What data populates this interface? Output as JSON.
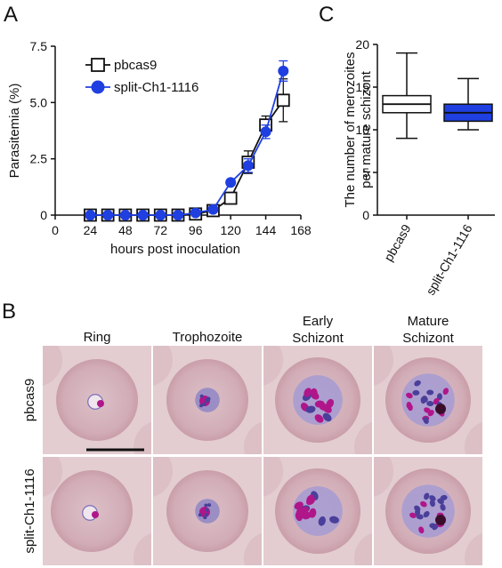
{
  "panels": {
    "a": "A",
    "b": "B",
    "c": "C"
  },
  "chart_data": [
    {
      "type": "line",
      "xlabel": "hours post inoculation",
      "ylabel": "Parasitemia (%)",
      "xlim": [
        0,
        168
      ],
      "ylim": [
        0,
        7.5
      ],
      "xticks": [
        0,
        24,
        48,
        72,
        96,
        120,
        144,
        168
      ],
      "yticks": [
        0,
        2.5,
        5.0,
        7.5
      ],
      "ytick_labels": [
        "0",
        "2.5",
        "5.0",
        "7.5"
      ],
      "legend_position": "top-left",
      "grid": false,
      "series": [
        {
          "name": "pbcas9",
          "marker": "open-square",
          "color": "#111111",
          "x": [
            24,
            36,
            48,
            60,
            72,
            84,
            96,
            108,
            120,
            132,
            144,
            156
          ],
          "y": [
            0,
            0,
            0,
            0,
            0,
            0,
            0.05,
            0.2,
            0.75,
            2.35,
            4.0,
            5.1
          ],
          "err": [
            0,
            0,
            0,
            0,
            0,
            0,
            0.05,
            0.08,
            0.15,
            0.5,
            0.4,
            0.95
          ]
        },
        {
          "name": "split-Ch1-1116",
          "marker": "filled-circle",
          "color": "#1f3fe0",
          "x": [
            24,
            36,
            48,
            60,
            72,
            84,
            96,
            108,
            120,
            132,
            144,
            156
          ],
          "y": [
            0,
            0,
            0,
            0,
            0,
            0,
            0.1,
            0.25,
            1.45,
            2.2,
            3.7,
            6.4
          ],
          "err": [
            0,
            0,
            0,
            0,
            0,
            0,
            0.05,
            0.1,
            0.12,
            0.3,
            0.3,
            0.45
          ]
        }
      ]
    },
    {
      "type": "box",
      "ylabel_lines": [
        "The number of merozoites",
        "per mature schizont"
      ],
      "ylim": [
        0,
        20
      ],
      "yticks": [
        0,
        5,
        10,
        15,
        20
      ],
      "categories": [
        "pbcas9",
        "split-Ch1-1116"
      ],
      "boxes": [
        {
          "name": "pbcas9",
          "min": 9,
          "q1": 12,
          "median": 13,
          "q3": 14,
          "max": 19,
          "fill": "#ffffff"
        },
        {
          "name": "split-Ch1-1116",
          "min": 10,
          "q1": 11,
          "median": 12,
          "q3": 13,
          "max": 16,
          "fill": "#1f3fe0"
        }
      ]
    }
  ],
  "micrographs": {
    "columns": [
      "Ring",
      "Trophozoite",
      "Early|Schizont",
      "Mature|Schizont"
    ],
    "rows": [
      "pbcas9",
      "split-Ch1-1116"
    ],
    "colors": {
      "background": "#e3cdd1",
      "cell": "#d6b4bd",
      "nucleus": "#b0168a",
      "cytoplasm": "#4a3f9a"
    }
  }
}
